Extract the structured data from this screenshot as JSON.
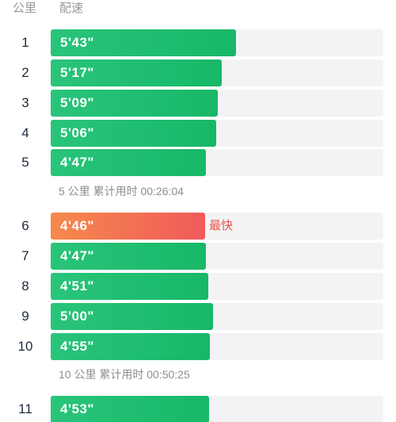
{
  "header": {
    "km_label": "公里",
    "pace_label": "配速"
  },
  "fastest_label": "最快",
  "colors": {
    "bar_normal": "#1fbd70",
    "bar_fastest": "#f26d52",
    "track": "#f3f3f5",
    "fastest_text": "#e8534b"
  },
  "splits": [
    {
      "km": "1",
      "pace": "5'43\"",
      "pace_seconds": 343,
      "fastest": false
    },
    {
      "km": "2",
      "pace": "5'17\"",
      "pace_seconds": 317,
      "fastest": false
    },
    {
      "km": "3",
      "pace": "5'09\"",
      "pace_seconds": 309,
      "fastest": false
    },
    {
      "km": "4",
      "pace": "5'06\"",
      "pace_seconds": 306,
      "fastest": false
    },
    {
      "km": "5",
      "pace": "4'47\"",
      "pace_seconds": 287,
      "fastest": false
    },
    {
      "km": "6",
      "pace": "4'46\"",
      "pace_seconds": 286,
      "fastest": true
    },
    {
      "km": "7",
      "pace": "4'47\"",
      "pace_seconds": 287,
      "fastest": false
    },
    {
      "km": "8",
      "pace": "4'51\"",
      "pace_seconds": 291,
      "fastest": false
    },
    {
      "km": "9",
      "pace": "5'00\"",
      "pace_seconds": 300,
      "fastest": false
    },
    {
      "km": "10",
      "pace": "4'55\"",
      "pace_seconds": 295,
      "fastest": false
    },
    {
      "km": "11",
      "pace": "4'53\"",
      "pace_seconds": 293,
      "fastest": false
    }
  ],
  "summaries": [
    {
      "after_km": "5",
      "text": "5 公里  累计用时 00:26:04"
    },
    {
      "after_km": "10",
      "text": "10 公里  累计用时 00:50:25"
    }
  ]
}
